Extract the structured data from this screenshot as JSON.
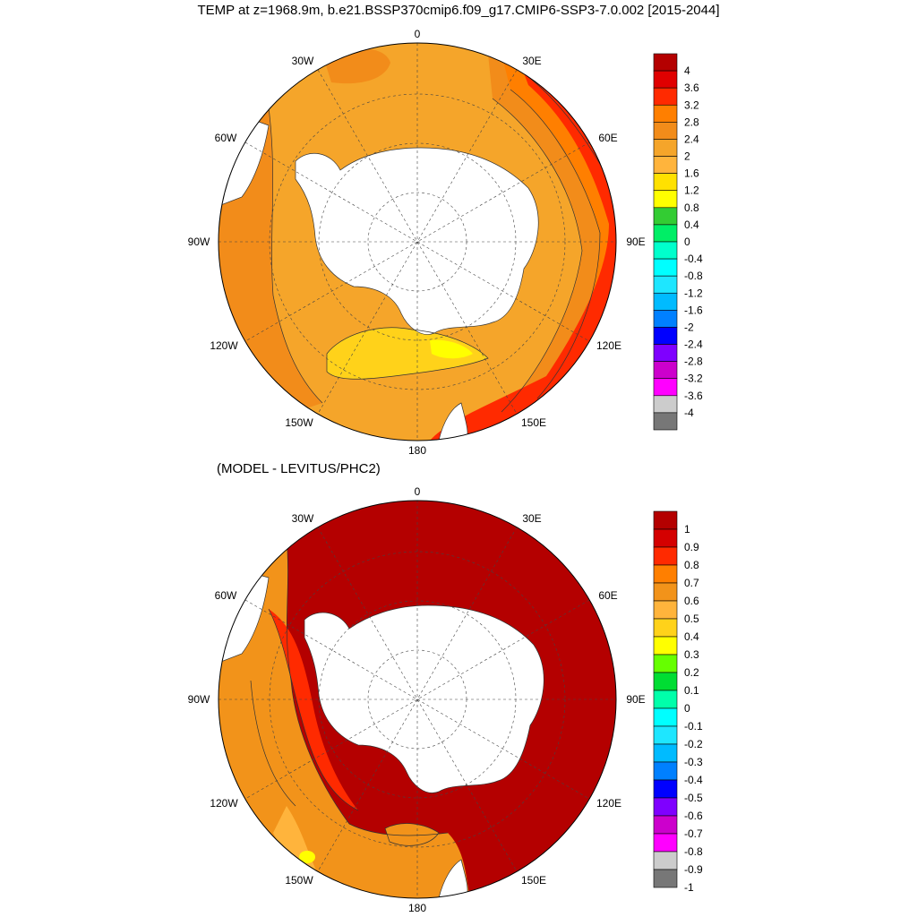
{
  "title": "TEMP at z=1968.9m, b.e21.BSSP370cmip6.f09_g17.CMIP6-SSP3-7.0.002 [2015-2044]",
  "subtitle": "(MODEL - LEVITUS/PHC2)",
  "map_labels": {
    "lon_0": "0",
    "lon_30e": "30E",
    "lon_60e": "60E",
    "lon_90e": "90E",
    "lon_120e": "120E",
    "lon_150e": "150E",
    "lon_180": "180",
    "lon_150w": "150W",
    "lon_120w": "120W",
    "lon_90w": "90W",
    "lon_60w": "60W",
    "lon_30w": "30W"
  },
  "colorbar_top": {
    "labels": [
      "4",
      "3.6",
      "3.2",
      "2.8",
      "2.4",
      "2",
      "1.6",
      "1.2",
      "0.8",
      "0.4",
      "0",
      "-0.4",
      "-0.8",
      "-1.2",
      "-1.6",
      "-2",
      "-2.4",
      "-2.8",
      "-3.2",
      "-3.6",
      "-4"
    ],
    "colors": [
      "#b40000",
      "#e00000",
      "#ff2a00",
      "#ff7f00",
      "#f28c1a",
      "#f5a52a",
      "#ffb43c",
      "#ffe100",
      "#ffff00",
      "#33cc33",
      "#00ee66",
      "#00ffcc",
      "#00ffff",
      "#1ee6ff",
      "#00bbff",
      "#0080ff",
      "#0000ff",
      "#7f00ff",
      "#cc00cc",
      "#ff00ff",
      "#cccccc",
      "#777777"
    ]
  },
  "colorbar_bottom": {
    "labels": [
      "1",
      "0.9",
      "0.8",
      "0.7",
      "0.6",
      "0.5",
      "0.4",
      "0.3",
      "0.2",
      "0.1",
      "0",
      "-0.1",
      "-0.2",
      "-0.3",
      "-0.4",
      "-0.5",
      "-0.6",
      "-0.7",
      "-0.8",
      "-0.9",
      "-1"
    ],
    "colors": [
      "#b40000",
      "#d40000",
      "#ff2a00",
      "#ff7f00",
      "#f2931a",
      "#ffb43c",
      "#ffd21a",
      "#ffff00",
      "#66ff00",
      "#00dd33",
      "#00ffaa",
      "#00ffff",
      "#1ee6ff",
      "#00bbff",
      "#0080ff",
      "#0000ff",
      "#7f00ff",
      "#cc00cc",
      "#ff00ff",
      "#cccccc",
      "#777777"
    ]
  },
  "colors": {
    "ocean_top_main": "#f5a52a",
    "ocean_top_warm": "#f28c1a",
    "ocean_top_hot": "#ff2a00",
    "ocean_top_cool": "#ffd21a",
    "ocean_bottom_main": "#b40000",
    "ocean_bottom_warm": "#f2931a",
    "land": "#ffffff"
  }
}
